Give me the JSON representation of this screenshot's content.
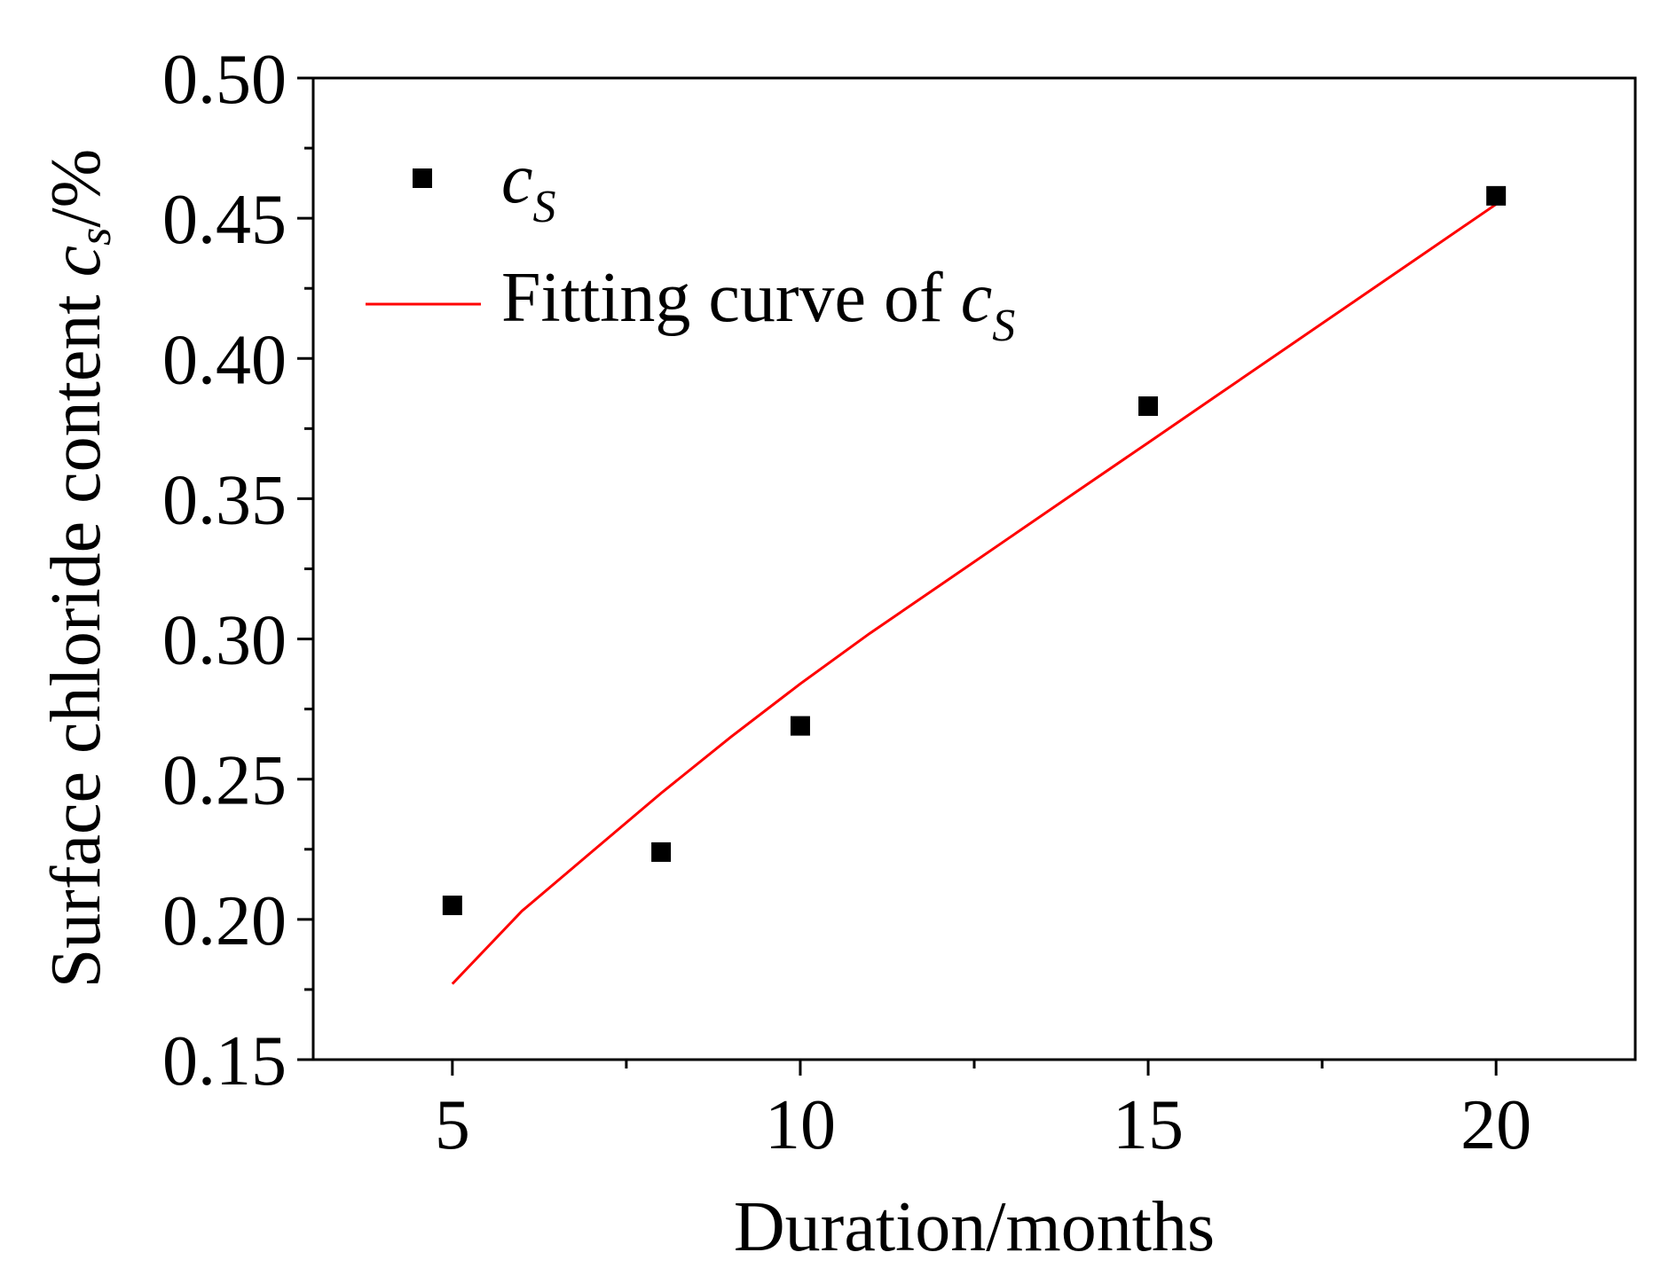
{
  "chart_data": {
    "type": "scatter",
    "xlabel": "Duration/months",
    "ylabel": {
      "prefix": "Surface chloride content ",
      "var": "c",
      "sub": "s",
      "suffix": "/%"
    },
    "xlim": [
      3,
      22
    ],
    "ylim": [
      0.15,
      0.5
    ],
    "xticks": [
      5,
      10,
      15,
      20
    ],
    "xtick_labels": [
      "5",
      "10",
      "15",
      "20"
    ],
    "yticks": [
      0.15,
      0.2,
      0.25,
      0.3,
      0.35,
      0.4,
      0.45,
      0.5
    ],
    "ytick_labels": [
      "0.15",
      "0.20",
      "0.25",
      "0.30",
      "0.35",
      "0.40",
      "0.45",
      "0.50"
    ],
    "series": [
      {
        "name": "cs",
        "kind": "scatter",
        "marker": "square",
        "color": "#000000",
        "points": [
          {
            "x": 5,
            "y": 0.205
          },
          {
            "x": 8,
            "y": 0.224
          },
          {
            "x": 10,
            "y": 0.269
          },
          {
            "x": 15,
            "y": 0.383
          },
          {
            "x": 20,
            "y": 0.458
          }
        ]
      },
      {
        "name": "Fitting curve of cs",
        "kind": "line",
        "color": "#ff0000",
        "points": [
          {
            "x": 5,
            "y": 0.177
          },
          {
            "x": 6,
            "y": 0.203
          },
          {
            "x": 7,
            "y": 0.224
          },
          {
            "x": 8,
            "y": 0.245
          },
          {
            "x": 9,
            "y": 0.265
          },
          {
            "x": 10,
            "y": 0.284
          },
          {
            "x": 11,
            "y": 0.302
          },
          {
            "x": 12,
            "y": 0.319
          },
          {
            "x": 13,
            "y": 0.336
          },
          {
            "x": 14,
            "y": 0.353
          },
          {
            "x": 15,
            "y": 0.37
          },
          {
            "x": 16,
            "y": 0.387
          },
          {
            "x": 17,
            "y": 0.404
          },
          {
            "x": 18,
            "y": 0.421
          },
          {
            "x": 19,
            "y": 0.438
          },
          {
            "x": 20,
            "y": 0.455
          }
        ]
      }
    ],
    "legend": {
      "position": "top-left",
      "entries": [
        {
          "label_var": "c",
          "label_sub": "S",
          "label_prefix": ""
        },
        {
          "label_var": "c",
          "label_sub": "S",
          "label_prefix": "Fitting curve of "
        }
      ]
    }
  }
}
